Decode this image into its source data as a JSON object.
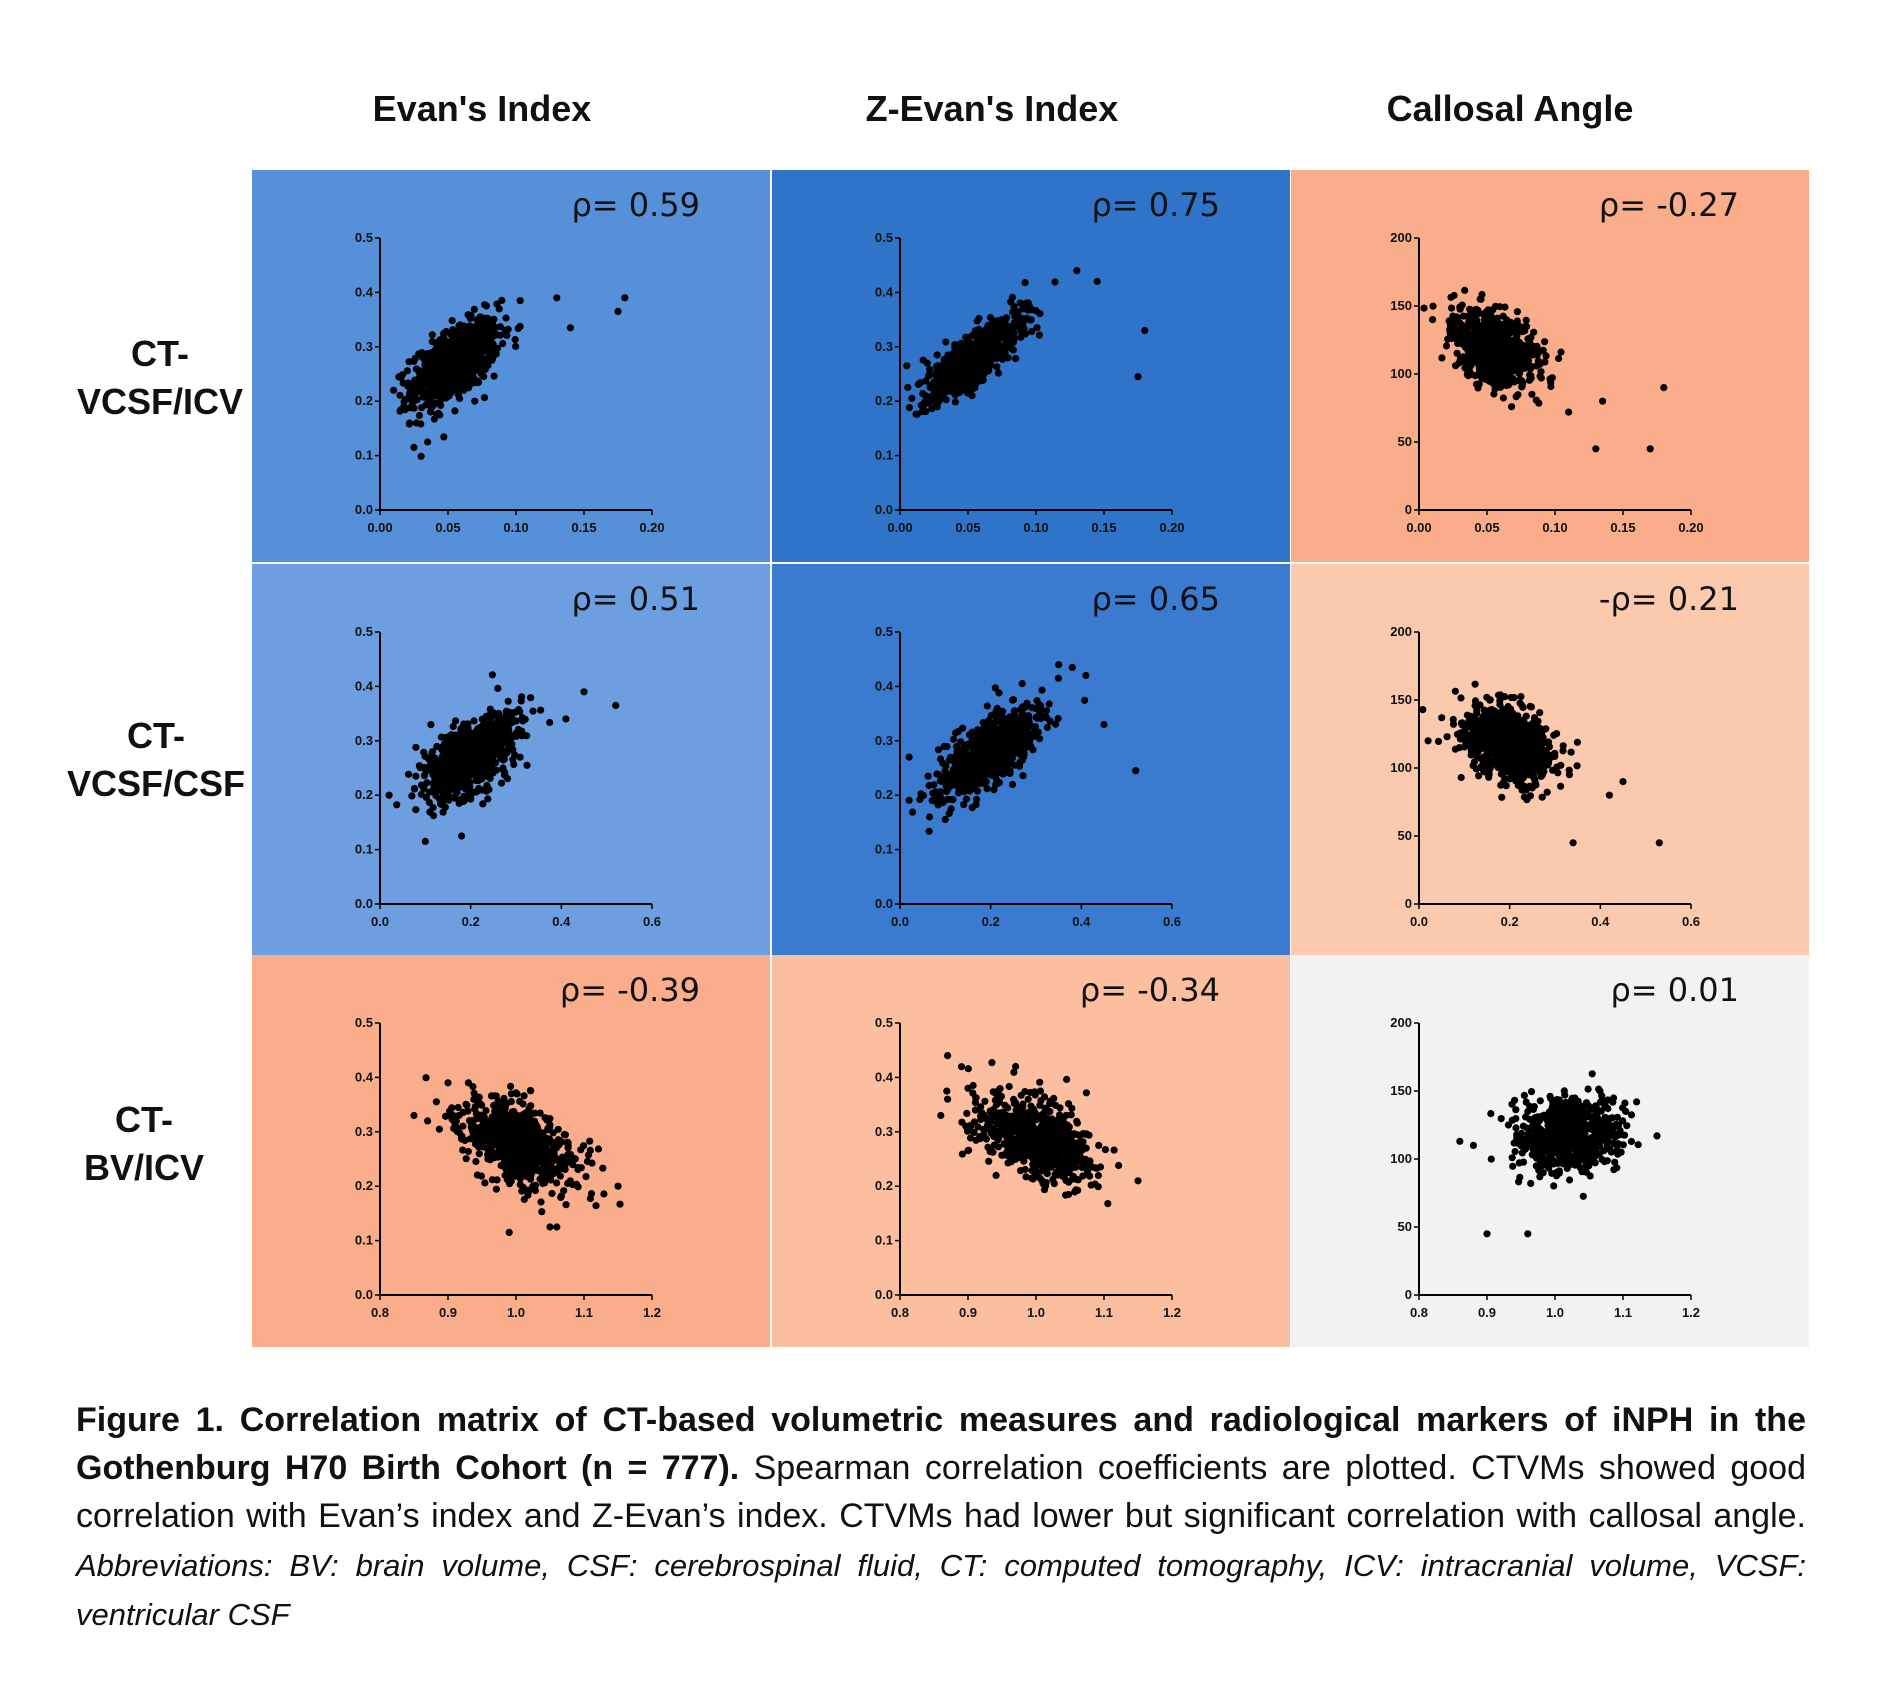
{
  "columns": [
    "Evan's Index",
    "Z-Evan's Index",
    "Callosal Angle"
  ],
  "rows": [
    "CT-\nVCSF/ICV",
    "CT-\nVCSF/CSF",
    "CT-\nBV/ICV"
  ],
  "colors": {
    "strong_blue": "#2f74c8",
    "mid_blue": "#3a7bd0",
    "blue": "#5590d8",
    "light_blue": "#6c9ee0",
    "salmon": "#f9ad8a",
    "light_salmon": "#fbbe9f",
    "pale_salmon": "#fbc9ae",
    "grey": "#f2f2f2"
  },
  "chart_data": [
    {
      "type": "scatter",
      "row": 0,
      "col": 0,
      "bg": "blue",
      "rho": "ρ= 0.59",
      "x_ticks": [
        "0.00",
        "0.05",
        "0.10",
        "0.15",
        "0.20"
      ],
      "y_ticks": [
        "0.0",
        "0.1",
        "0.2",
        "0.3",
        "0.4",
        "0.5"
      ],
      "xlim": [
        0,
        0.2
      ],
      "ylim": [
        0,
        0.5
      ],
      "cloud": {
        "cx": 0.055,
        "cy": 0.27,
        "sx": 0.016,
        "sy": 0.04,
        "r": 0.6,
        "n": 777
      },
      "outliers": [
        [
          0.18,
          0.39
        ],
        [
          0.175,
          0.365
        ],
        [
          0.14,
          0.335
        ],
        [
          0.13,
          0.39
        ],
        [
          0.025,
          0.115
        ],
        [
          0.035,
          0.125
        ],
        [
          0.01,
          0.22
        ]
      ]
    },
    {
      "type": "scatter",
      "row": 0,
      "col": 1,
      "bg": "strong_blue",
      "rho": "ρ= 0.75",
      "x_ticks": [
        "0.00",
        "0.05",
        "0.10",
        "0.15",
        "0.20"
      ],
      "y_ticks": [
        "0.0",
        "0.1",
        "0.2",
        "0.3",
        "0.4",
        "0.5"
      ],
      "xlim": [
        0,
        0.2
      ],
      "ylim": [
        0,
        0.5
      ],
      "cloud": {
        "cx": 0.055,
        "cy": 0.28,
        "sx": 0.018,
        "sy": 0.04,
        "r": 0.8,
        "n": 777
      },
      "outliers": [
        [
          0.18,
          0.33
        ],
        [
          0.175,
          0.245
        ],
        [
          0.13,
          0.44
        ],
        [
          0.145,
          0.42
        ],
        [
          0.005,
          0.265
        ],
        [
          0.02,
          0.27
        ]
      ]
    },
    {
      "type": "scatter",
      "row": 0,
      "col": 2,
      "bg": "salmon",
      "rho": "ρ= -0.27",
      "x_ticks": [
        "0.00",
        "0.05",
        "0.10",
        "0.15",
        "0.20"
      ],
      "y_ticks": [
        "0",
        "50",
        "100",
        "150",
        "200"
      ],
      "xlim": [
        0,
        0.2
      ],
      "ylim": [
        0,
        200
      ],
      "cloud": {
        "cx": 0.055,
        "cy": 118,
        "sx": 0.015,
        "sy": 14,
        "r": -0.35,
        "n": 777
      },
      "outliers": [
        [
          0.13,
          45
        ],
        [
          0.17,
          45
        ],
        [
          0.18,
          90
        ],
        [
          0.135,
          80
        ],
        [
          0.11,
          72
        ],
        [
          0.01,
          140
        ]
      ]
    },
    {
      "type": "scatter",
      "row": 1,
      "col": 0,
      "bg": "light_blue",
      "rho": "ρ= 0.51",
      "x_ticks": [
        "0.0",
        "0.2",
        "0.4",
        "0.6"
      ],
      "y_ticks": [
        "0.0",
        "0.1",
        "0.2",
        "0.3",
        "0.4",
        "0.5"
      ],
      "xlim": [
        0,
        0.6
      ],
      "ylim": [
        0,
        0.5
      ],
      "cloud": {
        "cx": 0.2,
        "cy": 0.27,
        "sx": 0.05,
        "sy": 0.04,
        "r": 0.55,
        "n": 777
      },
      "outliers": [
        [
          0.52,
          0.365
        ],
        [
          0.45,
          0.39
        ],
        [
          0.41,
          0.34
        ],
        [
          0.1,
          0.115
        ],
        [
          0.18,
          0.125
        ],
        [
          0.02,
          0.2
        ]
      ]
    },
    {
      "type": "scatter",
      "row": 1,
      "col": 1,
      "bg": "mid_blue",
      "rho": "ρ= 0.65",
      "x_ticks": [
        "0.0",
        "0.2",
        "0.4",
        "0.6"
      ],
      "y_ticks": [
        "0.0",
        "0.1",
        "0.2",
        "0.3",
        "0.4",
        "0.5"
      ],
      "xlim": [
        0,
        0.6
      ],
      "ylim": [
        0,
        0.5
      ],
      "cloud": {
        "cx": 0.2,
        "cy": 0.28,
        "sx": 0.055,
        "sy": 0.04,
        "r": 0.7,
        "n": 777
      },
      "outliers": [
        [
          0.52,
          0.245
        ],
        [
          0.45,
          0.33
        ],
        [
          0.41,
          0.42
        ],
        [
          0.38,
          0.435
        ],
        [
          0.35,
          0.44
        ],
        [
          0.02,
          0.27
        ]
      ]
    },
    {
      "type": "scatter",
      "row": 1,
      "col": 2,
      "bg": "pale_salmon",
      "rho": "-ρ= 0.21",
      "x_ticks": [
        "0.0",
        "0.2",
        "0.4",
        "0.6"
      ],
      "y_ticks": [
        "0",
        "50",
        "100",
        "150",
        "200"
      ],
      "xlim": [
        0,
        0.6
      ],
      "ylim": [
        0,
        200
      ],
      "cloud": {
        "cx": 0.2,
        "cy": 118,
        "sx": 0.05,
        "sy": 14,
        "r": -0.3,
        "n": 777
      },
      "outliers": [
        [
          0.53,
          45
        ],
        [
          0.34,
          45
        ],
        [
          0.45,
          90
        ],
        [
          0.42,
          80
        ],
        [
          0.02,
          120
        ],
        [
          0.05,
          137
        ]
      ]
    },
    {
      "type": "scatter",
      "row": 2,
      "col": 0,
      "bg": "salmon",
      "rho": "ρ= -0.39",
      "x_ticks": [
        "0.8",
        "0.9",
        "1.0",
        "1.1",
        "1.2"
      ],
      "y_ticks": [
        "0.0",
        "0.1",
        "0.2",
        "0.3",
        "0.4",
        "0.5"
      ],
      "xlim": [
        0.8,
        1.2
      ],
      "ylim": [
        0,
        0.5
      ],
      "cloud": {
        "cx": 1.0,
        "cy": 0.28,
        "sx": 0.04,
        "sy": 0.04,
        "r": -0.5,
        "n": 777
      },
      "outliers": [
        [
          0.85,
          0.33
        ],
        [
          0.87,
          0.32
        ],
        [
          0.9,
          0.39
        ],
        [
          0.93,
          0.39
        ],
        [
          1.15,
          0.2
        ],
        [
          0.99,
          0.115
        ],
        [
          1.05,
          0.125
        ],
        [
          1.06,
          0.125
        ]
      ]
    },
    {
      "type": "scatter",
      "row": 2,
      "col": 1,
      "bg": "light_salmon",
      "rho": "ρ= -0.34",
      "x_ticks": [
        "0.8",
        "0.9",
        "1.0",
        "1.1",
        "1.2"
      ],
      "y_ticks": [
        "0.0",
        "0.1",
        "0.2",
        "0.3",
        "0.4",
        "0.5"
      ],
      "xlim": [
        0.8,
        1.2
      ],
      "ylim": [
        0,
        0.5
      ],
      "cloud": {
        "cx": 1.0,
        "cy": 0.285,
        "sx": 0.04,
        "sy": 0.04,
        "r": -0.45,
        "n": 777
      },
      "outliers": [
        [
          0.87,
          0.44
        ],
        [
          0.86,
          0.33
        ],
        [
          0.87,
          0.36
        ],
        [
          0.9,
          0.38
        ],
        [
          1.15,
          0.21
        ],
        [
          0.97,
          0.42
        ]
      ]
    },
    {
      "type": "scatter",
      "row": 2,
      "col": 2,
      "bg": "grey",
      "rho": "ρ= 0.01",
      "x_ticks": [
        "0.8",
        "0.9",
        "1.0",
        "1.1",
        "1.2"
      ],
      "y_ticks": [
        "0",
        "50",
        "100",
        "150",
        "200"
      ],
      "xlim": [
        0.8,
        1.2
      ],
      "ylim": [
        0,
        200
      ],
      "cloud": {
        "cx": 1.02,
        "cy": 118,
        "sx": 0.035,
        "sy": 13,
        "r": 0.05,
        "n": 777
      },
      "outliers": [
        [
          0.9,
          45
        ],
        [
          0.96,
          45
        ],
        [
          0.86,
          113
        ],
        [
          0.88,
          110
        ],
        [
          1.15,
          117
        ],
        [
          1.12,
          142
        ]
      ]
    }
  ],
  "caption": {
    "bold": "Figure 1. Correlation matrix of CT-based volumetric measures and radiological markers of iNPH in the Gothenburg H70 Birth Cohort (n = 777).",
    "text": " Spearman correlation coefficients are plotted. CTVMs showed good correlation with Evan’s index and Z-Evan’s index. CTVMs had lower but significant correlation with callosal angle.",
    "italic": " Abbreviations: BV: brain volume, CSF: cerebrospinal fluid, CT: computed tomography, ICV: intracranial volume, VCSF: ventricular CSF"
  }
}
